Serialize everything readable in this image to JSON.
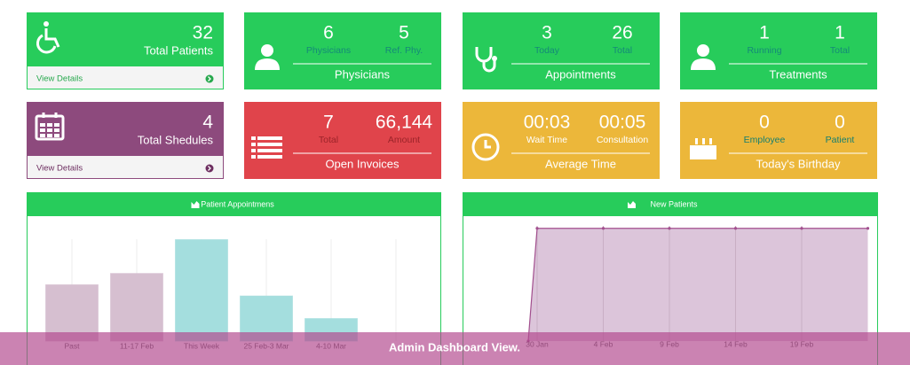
{
  "cards": [
    {
      "value": "32",
      "label": "Total Patients",
      "link": "View Details"
    },
    {
      "items": [
        {
          "value": "6",
          "label": "Physicians"
        },
        {
          "value": "5",
          "label": "Ref. Phy."
        }
      ],
      "title": "Physicians"
    },
    {
      "items": [
        {
          "value": "3",
          "label": "Today"
        },
        {
          "value": "26",
          "label": "Total"
        }
      ],
      "title": "Appointments"
    },
    {
      "items": [
        {
          "value": "1",
          "label": "Running"
        },
        {
          "value": "1",
          "label": "Total"
        }
      ],
      "title": "Treatments"
    },
    {
      "value": "4",
      "label": "Total Shedules",
      "link": "View Details"
    },
    {
      "items": [
        {
          "value": "7",
          "label": "Total"
        },
        {
          "value": "66,144",
          "label": "Amount"
        }
      ],
      "title": "Open Invoices"
    },
    {
      "items": [
        {
          "value": "00:03",
          "label": "Wait Time"
        },
        {
          "value": "00:05",
          "label": "Consultation"
        }
      ],
      "title": "Average Time"
    },
    {
      "items": [
        {
          "value": "0",
          "label": "Employee"
        },
        {
          "value": "0",
          "label": "Patient"
        }
      ],
      "title": "Today's Birthday"
    }
  ],
  "chart_data": [
    {
      "type": "bar",
      "title": "Patient Appointmens",
      "categories": [
        "Past",
        "11-17 Feb",
        "This Week",
        "25 Feb-3 Mar",
        "4-10 Mar",
        null
      ],
      "values": [
        5,
        6,
        9,
        4,
        2,
        0
      ],
      "colors": [
        "#d6bfd0",
        "#d6bfd0",
        "#a4dede",
        "#a4dede",
        "#a4dede",
        "#a4dede"
      ],
      "ylim": [
        0,
        11
      ],
      "grid": true
    },
    {
      "type": "area",
      "title": "New Patients",
      "categories": [
        null,
        "30 Jan",
        "4 Feb",
        "9 Feb",
        "14 Feb",
        "19 Feb",
        null
      ],
      "values": [
        0,
        10,
        10,
        10,
        10,
        10,
        10
      ],
      "color": "#a24f8e",
      "fill": "#dcc5da",
      "ylim": [
        0,
        11
      ],
      "grid": true
    }
  ],
  "caption": "Admin Dashboard View."
}
